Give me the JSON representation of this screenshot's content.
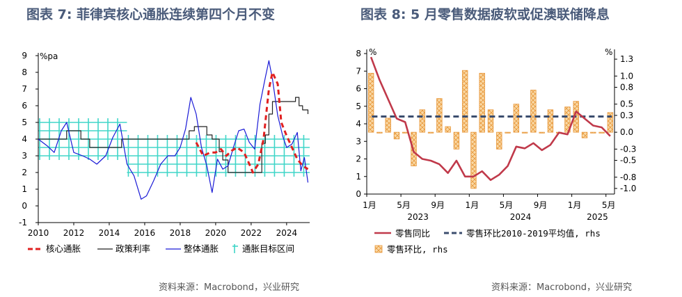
{
  "figures": [
    {
      "title": "图表 7:  菲律宾核心通胀连续第四个月不变",
      "source": "资料来源：Macrobond，兴业研究"
    },
    {
      "title": "图表 8:  5 月零售数据疲软或促澳联储降息",
      "source": "资料来源：Macrobond，兴业研究"
    }
  ],
  "chart_data": [
    {
      "type": "line",
      "unit_label": "%pa",
      "ylim": [
        -1,
        9
      ],
      "xlim": [
        2010,
        2025.3
      ],
      "y_ticks": [
        "-1",
        "0",
        "1",
        "2",
        "3",
        "4",
        "5",
        "6",
        "7",
        "8",
        "9"
      ],
      "x_ticks": [
        "2010",
        "2012",
        "2014",
        "2016",
        "2018",
        "2020",
        "2022",
        "2024"
      ],
      "legend": [
        "核心通胀",
        "政策利率",
        "整体通胀",
        "通胀目标区间"
      ],
      "colors": {
        "core": "#e02020",
        "policy": "#222222",
        "headline": "#1a1ad6",
        "target": "#40d6c8"
      },
      "target_band": [
        {
          "x": [
            2010,
            2015
          ],
          "low": 3,
          "high": 5
        },
        {
          "x": [
            2015,
            2025.3
          ],
          "low": 2,
          "high": 4
        }
      ],
      "series": [
        {
          "name": "核心通胀",
          "x": [
            2018.9,
            2019.3,
            2019.7,
            2020,
            2020.3,
            2020.6,
            2020.9,
            2021.2,
            2021.6,
            2021.9,
            2022.1,
            2022.4,
            2022.7,
            2023,
            2023.2,
            2023.5,
            2023.7,
            2024,
            2024.3,
            2024.6,
            2024.9,
            2025.2
          ],
          "y": [
            3.8,
            3.0,
            3.2,
            3.2,
            3.4,
            3.0,
            3.3,
            3.5,
            3.2,
            2.5,
            2.0,
            2.5,
            4.0,
            7.0,
            8.0,
            7.3,
            5.0,
            4.2,
            3.5,
            2.8,
            2.4,
            2.2
          ]
        },
        {
          "name": "政策利率",
          "x": [
            2010,
            2011.2,
            2011.6,
            2012,
            2012.4,
            2012.9,
            2013.5,
            2014.4,
            2014.7,
            2015,
            2016.5,
            2018.3,
            2018.5,
            2018.8,
            2019.2,
            2019.5,
            2019.8,
            2020.2,
            2020.4,
            2020.7,
            2022.4,
            2022.6,
            2022.8,
            2023.0,
            2023.2,
            2024.5,
            2024.7,
            2024.9,
            2025.2
          ],
          "y": [
            4.0,
            4.0,
            4.5,
            4.5,
            4.0,
            3.5,
            3.5,
            3.5,
            4.0,
            4.0,
            4.0,
            4.0,
            4.5,
            4.75,
            4.75,
            4.25,
            4.0,
            3.25,
            2.75,
            2.0,
            2.0,
            3.75,
            4.25,
            5.5,
            6.25,
            6.5,
            6.0,
            5.75,
            5.5
          ]
        },
        {
          "name": "整体通胀",
          "x": [
            2010,
            2010.5,
            2010.9,
            2011.3,
            2011.6,
            2012,
            2012.5,
            2012.9,
            2013.3,
            2013.8,
            2014.2,
            2014.6,
            2015,
            2015.4,
            2015.8,
            2016.1,
            2016.5,
            2016.9,
            2017.3,
            2017.7,
            2018,
            2018.3,
            2018.6,
            2018.9,
            2019.2,
            2019.5,
            2019.8,
            2020.1,
            2020.4,
            2020.7,
            2021,
            2021.3,
            2021.6,
            2021.9,
            2022.2,
            2022.5,
            2022.8,
            2023,
            2023.2,
            2023.5,
            2023.8,
            2024,
            2024.3,
            2024.6,
            2024.8,
            2025,
            2025.2
          ],
          "y": [
            4.0,
            3.6,
            3.2,
            4.5,
            5.0,
            3.2,
            3.0,
            2.8,
            2.5,
            3.0,
            4.1,
            4.9,
            2.5,
            1.8,
            0.4,
            0.6,
            1.5,
            2.5,
            3.0,
            3.0,
            3.5,
            4.6,
            6.5,
            5.5,
            3.5,
            2.4,
            0.8,
            2.8,
            2.2,
            2.4,
            3.5,
            4.5,
            4.6,
            3.8,
            3.4,
            6.1,
            7.7,
            8.7,
            7.6,
            5.4,
            4.1,
            3.5,
            3.7,
            4.4,
            2.1,
            2.9,
            1.4
          ]
        }
      ]
    },
    {
      "type": "bar",
      "left_unit": "%",
      "right_unit": "%",
      "ylim_left": [
        0,
        8
      ],
      "ylim_right": [
        -1.1,
        1.4
      ],
      "left_ticks": [
        "0",
        "1",
        "2",
        "3",
        "4",
        "5",
        "6",
        "7",
        "8"
      ],
      "right_ticks": [
        "-1.0",
        "-0.8",
        "-0.5",
        "-0.3",
        "0.0",
        "0.3",
        "0.5",
        "0.8",
        "1.0",
        "1.3"
      ],
      "x_ticks": [
        "1月",
        "5月",
        "9月",
        "1月",
        "5月",
        "9月",
        "1月",
        "5月"
      ],
      "year_labels": [
        "2023",
        "2024",
        "2025"
      ],
      "legend": [
        "零售同比",
        "零售环比2010-2019平均值, rhs",
        "零售环比, rhs"
      ],
      "colors": {
        "yoy": "#c0394a",
        "avg": "#3b4d6e",
        "mom_fill": "#f9d9a6",
        "mom_edge": "#e8973a"
      },
      "months": [
        "2023-01",
        "2023-02",
        "2023-03",
        "2023-04",
        "2023-05",
        "2023-06",
        "2023-07",
        "2023-08",
        "2023-09",
        "2023-10",
        "2023-11",
        "2023-12",
        "2024-01",
        "2024-02",
        "2024-03",
        "2024-04",
        "2024-05",
        "2024-06",
        "2024-07",
        "2024-08",
        "2024-09",
        "2024-10",
        "2024-11",
        "2024-12",
        "2025-01",
        "2025-02",
        "2025-03",
        "2025-04",
        "2025-05"
      ],
      "series": [
        {
          "name": "零售同比",
          "values": [
            7.8,
            6.5,
            5.4,
            4.3,
            4.1,
            2.4,
            2.0,
            1.9,
            1.7,
            1.2,
            1.9,
            1.0,
            1.0,
            1.3,
            0.8,
            1.1,
            1.6,
            2.7,
            2.6,
            2.9,
            2.5,
            2.8,
            3.5,
            3.4,
            4.7,
            4.3,
            3.9,
            3.8,
            3.3
          ]
        },
        {
          "name": "零售环比, rhs",
          "values": [
            1.05,
            0.0,
            0.25,
            -0.12,
            0.0,
            -0.6,
            0.4,
            0.0,
            0.6,
            0.1,
            -0.3,
            1.1,
            -1.0,
            1.05,
            0.4,
            -0.3,
            0.0,
            0.5,
            0.0,
            0.75,
            0.0,
            0.4,
            0.0,
            0.45,
            0.55,
            -0.1,
            0.0,
            0.0,
            0.35
          ]
        },
        {
          "name": "零售环比2010-2019平均值, rhs",
          "value": 0.28
        }
      ]
    }
  ]
}
